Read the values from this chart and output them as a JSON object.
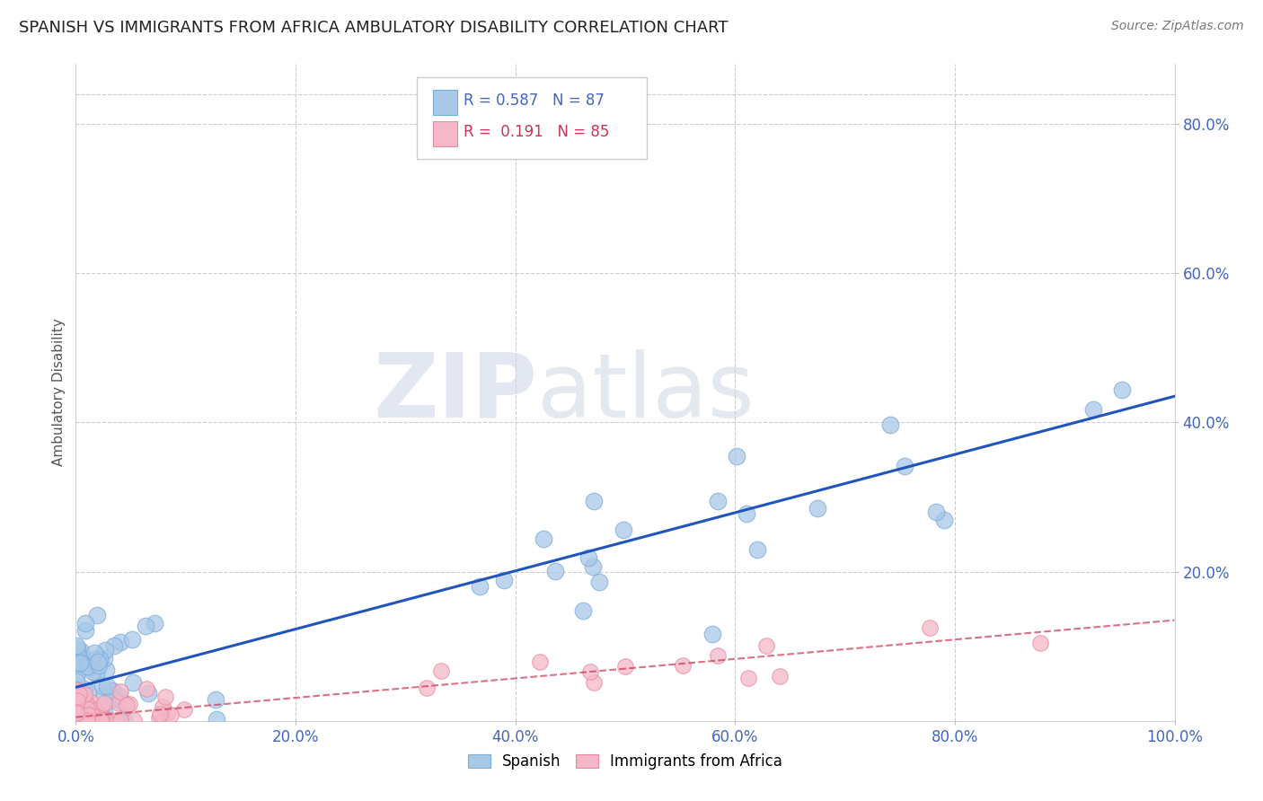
{
  "title": "SPANISH VS IMMIGRANTS FROM AFRICA AMBULATORY DISABILITY CORRELATION CHART",
  "source": "Source: ZipAtlas.com",
  "ylabel": "Ambulatory Disability",
  "xlim": [
    0.0,
    1.0
  ],
  "ylim": [
    0.0,
    0.88
  ],
  "xtick_labels": [
    "0.0%",
    "20.0%",
    "40.0%",
    "60.0%",
    "80.0%",
    "100.0%"
  ],
  "xtick_positions": [
    0.0,
    0.2,
    0.4,
    0.6,
    0.8,
    1.0
  ],
  "ytick_labels": [
    "20.0%",
    "40.0%",
    "60.0%",
    "80.0%"
  ],
  "ytick_positions": [
    0.2,
    0.4,
    0.6,
    0.8
  ],
  "background_color": "#ffffff",
  "grid_color": "#cccccc",
  "legend_R1": "0.587",
  "legend_N1": "87",
  "legend_R2": "0.191",
  "legend_N2": "85",
  "series1_color": "#a8c8e8",
  "series1_edge": "#7aacda",
  "series2_color": "#f5b8c8",
  "series2_edge": "#e88aa0",
  "series1_label": "Spanish",
  "series2_label": "Immigrants from Africa",
  "line1_color": "#2255bb",
  "line2_color": "#cc3355",
  "title_color": "#222222",
  "axis_tick_color": "#4466bb",
  "watermark_zip_color": "#d0d8e8",
  "watermark_atlas_color": "#c8d4e0",
  "line1_start_y": 0.045,
  "line1_end_y": 0.435,
  "line2_start_y": 0.005,
  "line2_end_y": 0.135
}
